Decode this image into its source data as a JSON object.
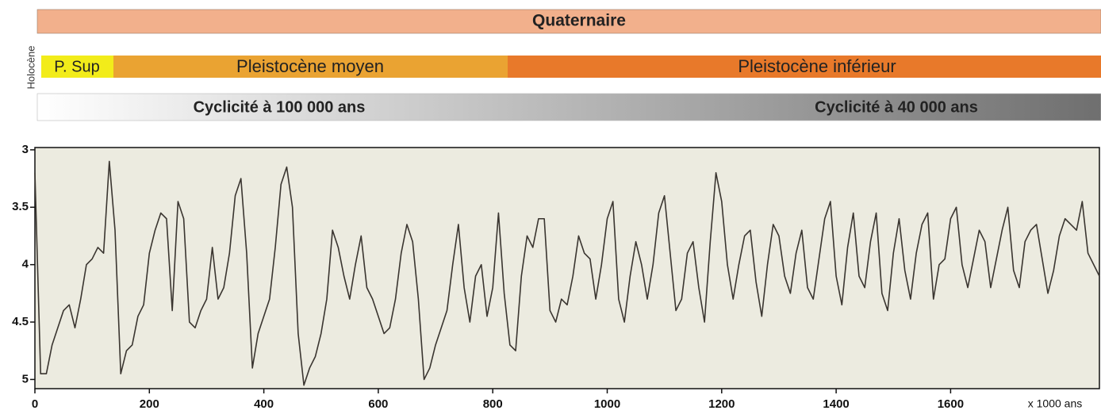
{
  "chart_data": {
    "type": "line",
    "annotations": [
      "Quaternaire",
      "Holocène",
      "P. Sup",
      "Pleistocène moyen",
      "Pleistocène inférieur",
      "Cyclicité à 100 000 ans",
      "Cyclicité à 40 000 ans"
    ],
    "xlabel": "x 1000 ans",
    "color": "#3a3530",
    "background": "#ecebe0",
    "xlim": [
      0,
      1860
    ],
    "ylim": [
      5.08,
      2.98
    ],
    "xticks": [
      0,
      200,
      400,
      600,
      800,
      1000,
      1200,
      1400,
      1600
    ],
    "yticks": [
      3,
      3.5,
      4,
      4.5,
      5
    ],
    "x": [
      0,
      10,
      20,
      30,
      40,
      50,
      60,
      70,
      80,
      90,
      100,
      110,
      120,
      130,
      140,
      150,
      160,
      170,
      180,
      190,
      200,
      210,
      220,
      230,
      240,
      250,
      260,
      270,
      280,
      290,
      300,
      310,
      320,
      330,
      340,
      350,
      360,
      370,
      380,
      390,
      400,
      410,
      420,
      430,
      440,
      450,
      460,
      470,
      480,
      490,
      500,
      510,
      520,
      530,
      540,
      550,
      560,
      570,
      580,
      590,
      600,
      610,
      620,
      630,
      640,
      650,
      660,
      670,
      680,
      690,
      700,
      710,
      720,
      730,
      740,
      750,
      760,
      770,
      780,
      790,
      800,
      810,
      820,
      830,
      840,
      850,
      860,
      870,
      880,
      890,
      900,
      910,
      920,
      930,
      940,
      950,
      960,
      970,
      980,
      990,
      1000,
      1010,
      1020,
      1030,
      1040,
      1050,
      1060,
      1070,
      1080,
      1090,
      1100,
      1110,
      1120,
      1130,
      1140,
      1150,
      1160,
      1170,
      1180,
      1190,
      1200,
      1210,
      1220,
      1230,
      1240,
      1250,
      1260,
      1270,
      1280,
      1290,
      1300,
      1310,
      1320,
      1330,
      1340,
      1350,
      1360,
      1370,
      1380,
      1390,
      1400,
      1410,
      1420,
      1430,
      1440,
      1450,
      1460,
      1470,
      1480,
      1490,
      1500,
      1510,
      1520,
      1530,
      1540,
      1550,
      1560,
      1570,
      1580,
      1590,
      1600,
      1610,
      1620,
      1630,
      1640,
      1650,
      1660,
      1670,
      1680,
      1690,
      1700,
      1710,
      1720,
      1730,
      1740,
      1750,
      1760,
      1770,
      1780,
      1790,
      1800,
      1810,
      1820,
      1830,
      1840,
      1850,
      1860
    ],
    "values": [
      3.2,
      4.95,
      4.95,
      4.7,
      4.55,
      4.4,
      4.35,
      4.55,
      4.3,
      4.0,
      3.95,
      3.85,
      3.9,
      3.1,
      3.7,
      4.95,
      4.75,
      4.7,
      4.45,
      4.35,
      3.9,
      3.7,
      3.55,
      3.6,
      4.4,
      3.45,
      3.6,
      4.5,
      4.55,
      4.4,
      4.3,
      3.85,
      4.3,
      4.2,
      3.9,
      3.4,
      3.25,
      3.9,
      4.9,
      4.6,
      4.45,
      4.3,
      3.85,
      3.3,
      3.15,
      3.5,
      4.6,
      5.05,
      4.9,
      4.8,
      4.6,
      4.3,
      3.7,
      3.85,
      4.1,
      4.3,
      4.0,
      3.75,
      4.2,
      4.3,
      4.45,
      4.6,
      4.55,
      4.3,
      3.9,
      3.65,
      3.8,
      4.3,
      5.0,
      4.9,
      4.7,
      4.55,
      4.4,
      4.0,
      3.65,
      4.2,
      4.5,
      4.1,
      4.0,
      4.45,
      4.2,
      3.55,
      4.25,
      4.7,
      4.75,
      4.1,
      3.75,
      3.85,
      3.6,
      3.6,
      4.4,
      4.5,
      4.3,
      4.35,
      4.1,
      3.75,
      3.9,
      3.95,
      4.3,
      4.0,
      3.6,
      3.45,
      4.3,
      4.5,
      4.1,
      3.8,
      4.0,
      4.3,
      4.0,
      3.55,
      3.4,
      3.9,
      4.4,
      4.3,
      3.9,
      3.8,
      4.2,
      4.5,
      3.8,
      3.2,
      3.45,
      4.0,
      4.3,
      4.0,
      3.75,
      3.7,
      4.15,
      4.45,
      4.0,
      3.65,
      3.75,
      4.1,
      4.25,
      3.9,
      3.7,
      4.2,
      4.3,
      3.95,
      3.6,
      3.45,
      4.1,
      4.35,
      3.85,
      3.55,
      4.1,
      4.2,
      3.8,
      3.55,
      4.25,
      4.4,
      3.9,
      3.6,
      4.05,
      4.3,
      3.9,
      3.65,
      3.55,
      4.3,
      4.0,
      3.95,
      3.6,
      3.5,
      4.0,
      4.2,
      3.95,
      3.7,
      3.8,
      4.2,
      3.95,
      3.7,
      3.5,
      4.05,
      4.2,
      3.8,
      3.7,
      3.65,
      3.95,
      4.25,
      4.05,
      3.75,
      3.6,
      3.65,
      3.7,
      3.45,
      3.9,
      4.0,
      4.1
    ]
  }
}
